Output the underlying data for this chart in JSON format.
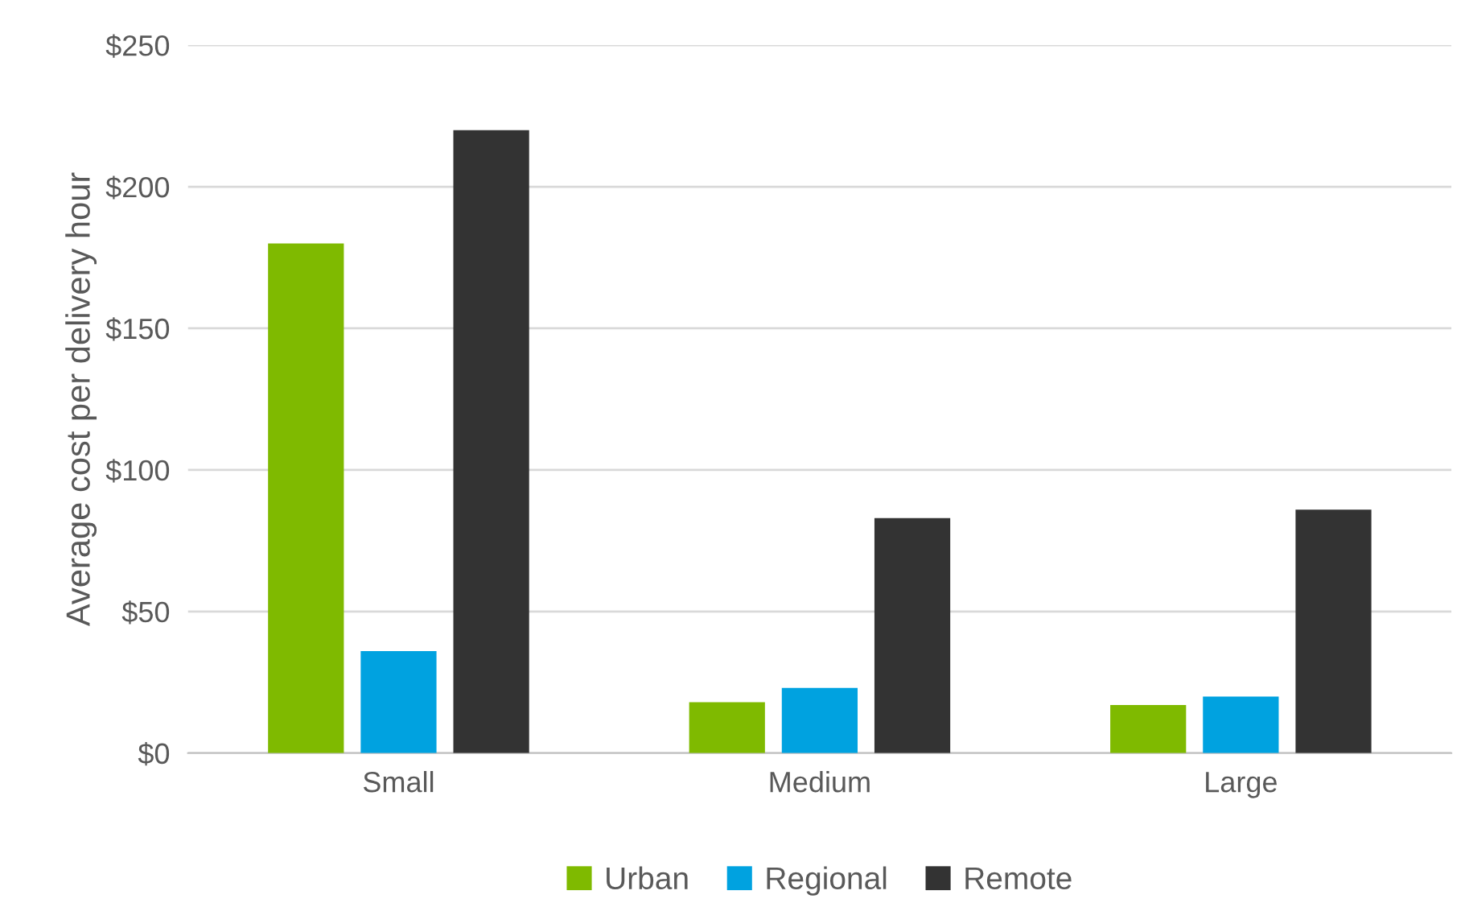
{
  "chart_data": {
    "type": "bar",
    "ylabel": "Average cost per delivery hour",
    "categories": [
      "Small",
      "Medium",
      "Large"
    ],
    "series": [
      {
        "name": "Urban",
        "color": "#7fba00",
        "values": [
          180,
          18,
          17
        ]
      },
      {
        "name": "Regional",
        "color": "#00a2e0",
        "values": [
          36,
          23,
          20
        ]
      },
      {
        "name": "Remote",
        "color": "#333333",
        "values": [
          220,
          83,
          86
        ]
      }
    ],
    "ylim": [
      0,
      250
    ],
    "yticks": [
      {
        "value": 0,
        "label": "$0"
      },
      {
        "value": 50,
        "label": "$50"
      },
      {
        "value": 100,
        "label": "$100"
      },
      {
        "value": 150,
        "label": "$150"
      },
      {
        "value": 200,
        "label": "$200"
      },
      {
        "value": 250,
        "label": "$250"
      }
    ],
    "grid": "y",
    "legend": "bottom"
  }
}
